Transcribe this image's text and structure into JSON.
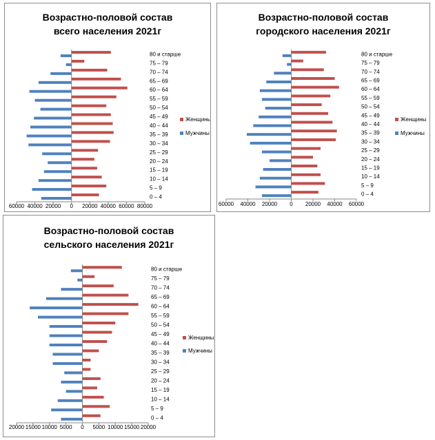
{
  "chart_data": [
    {
      "type": "bar",
      "orientation": "horizontal",
      "subtype": "population-pyramid",
      "title": "Возрастно-половой состав всего населения 2021г",
      "categories": [
        "0 – 4",
        "5 – 9",
        "10 – 14",
        "15 – 19",
        "20 – 24",
        "25 – 29",
        "30 – 34",
        "35 – 39",
        "40 – 44",
        "45 – 49",
        "50 – 54",
        "55 – 59",
        "60 – 64",
        "65 – 69",
        "70 – 74",
        "75 – 79",
        "80 и старше"
      ],
      "series": [
        {
          "name": "Женщины",
          "color": "#c0504d",
          "values": [
            30000,
            38000,
            33000,
            28000,
            25000,
            29000,
            42000,
            46000,
            45000,
            43000,
            38000,
            49000,
            61000,
            54000,
            39000,
            14000,
            43000
          ]
        },
        {
          "name": "Мужчины",
          "color": "#4f81bd",
          "values": [
            33000,
            43000,
            36000,
            30000,
            26000,
            32000,
            47000,
            49000,
            45000,
            41000,
            34000,
            40000,
            46000,
            36000,
            23000,
            6000,
            12000
          ]
        }
      ],
      "xticks": [
        "60000",
        "40000",
        "20000",
        "0",
        "20000",
        "40000",
        "60000",
        "80000"
      ],
      "xlim": [
        -60000,
        80000
      ],
      "legend": "right"
    },
    {
      "type": "bar",
      "orientation": "horizontal",
      "subtype": "population-pyramid",
      "title": "Возрастно-половой состав городского населения 2021г",
      "categories": [
        "0 – 4",
        "5 – 9",
        "10 – 14",
        "15 – 19",
        "20 – 24",
        "25 – 29",
        "30 – 34",
        "35 – 39",
        "40 – 44",
        "45 – 49",
        "50 – 54",
        "55 – 59",
        "60 – 64",
        "65 – 69",
        "70 – 74",
        "75 – 79",
        "80 и старше"
      ],
      "series": [
        {
          "name": "Женщины",
          "color": "#c0504d",
          "values": [
            25000,
            31000,
            27000,
            24000,
            20000,
            27000,
            41000,
            42000,
            38000,
            34000,
            28000,
            36000,
            44000,
            40000,
            30000,
            11000,
            32000
          ]
        },
        {
          "name": "Мужчины",
          "color": "#4f81bd",
          "values": [
            27000,
            33000,
            29000,
            26000,
            20000,
            27000,
            38000,
            41000,
            35000,
            30000,
            24000,
            27000,
            29000,
            23000,
            16000,
            4000,
            8000
          ]
        }
      ],
      "xticks": [
        "60000",
        "40000",
        "20000",
        "0",
        "20000",
        "40000",
        "60000"
      ],
      "xlim": [
        -60000,
        60000
      ],
      "legend": "right"
    },
    {
      "type": "bar",
      "orientation": "horizontal",
      "subtype": "population-pyramid",
      "title": "Возрастно-половой состав сельского населения 2021г",
      "categories": [
        "0 – 4",
        "5 – 9",
        "10 – 14",
        "15 – 19",
        "20 – 24",
        "25 – 29",
        "30 – 34",
        "35 – 39",
        "40 – 44",
        "45 – 49",
        "50 – 54",
        "55 – 59",
        "60 – 64",
        "65 – 69",
        "70 – 74",
        "75 – 79",
        "80 и старше"
      ],
      "series": [
        {
          "name": "Женщины",
          "color": "#c0504d",
          "values": [
            5500,
            8300,
            6500,
            4500,
            5500,
            2500,
            2500,
            5000,
            7500,
            9000,
            10000,
            14000,
            17000,
            14000,
            9500,
            3700,
            12000
          ]
        },
        {
          "name": "Мужчины",
          "color": "#4f81bd",
          "values": [
            6500,
            9500,
            7500,
            5000,
            6500,
            5500,
            9000,
            9000,
            10000,
            10000,
            10000,
            13500,
            16000,
            11000,
            6500,
            1500,
            3500
          ]
        }
      ],
      "xticks": [
        "20000",
        "15000",
        "10000",
        "5000",
        "0",
        "5000",
        "10000",
        "15000",
        "20000"
      ],
      "xlim": [
        -20000,
        20000
      ],
      "legend": "right"
    }
  ]
}
